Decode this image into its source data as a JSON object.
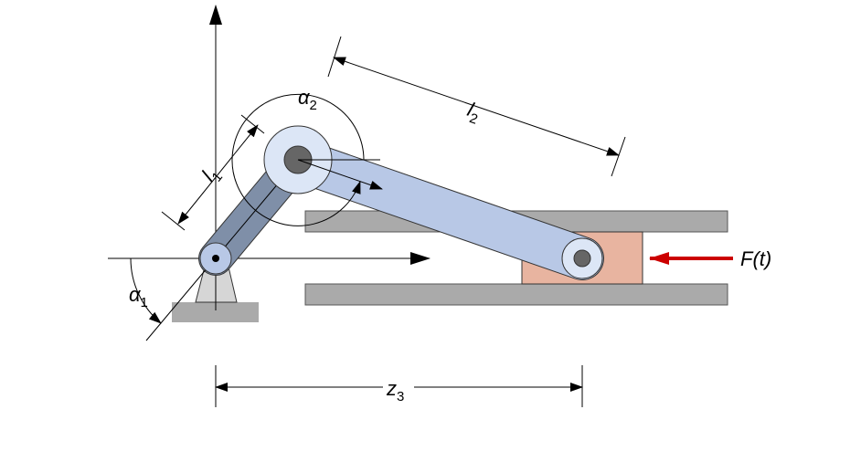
{
  "labels": {
    "l1": {
      "base": "l",
      "sub": "1"
    },
    "l2": {
      "base": "l",
      "sub": "2"
    },
    "alpha1": {
      "base": "α",
      "sub": "1"
    },
    "alpha2": {
      "base": "α",
      "sub": "2"
    },
    "z3": {
      "base": "z",
      "sub": "3"
    },
    "force": "F(t)"
  },
  "colors": {
    "guide_rail": "#aaaaaa",
    "ground": "#aaaaaa",
    "pivot_mount": "#d6d6d6",
    "crank": "#7f8fa8",
    "connecting_rod": "#b8c8e6",
    "slider": "#e8b4a0",
    "pin": "#666666",
    "force_arrow": "#cc0000",
    "line": "#000000"
  }
}
